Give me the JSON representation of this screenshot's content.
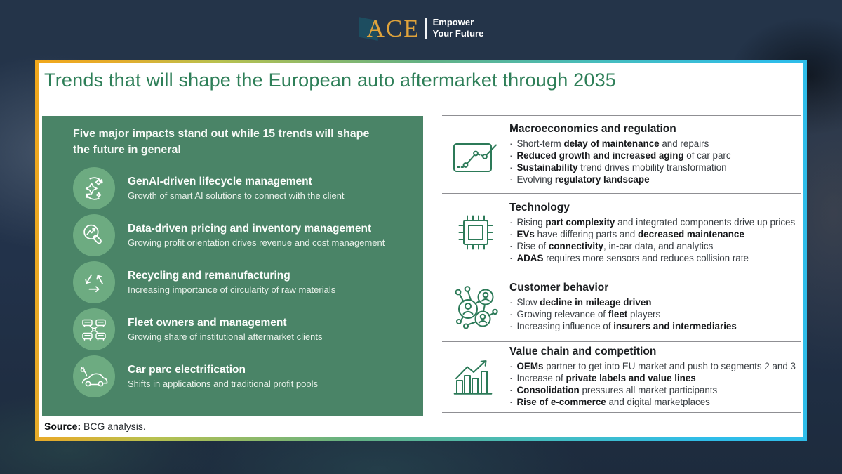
{
  "logo": {
    "mark": "ace-ribbon-mark",
    "name": "ACE",
    "tagline_line1": "Empower",
    "tagline_line2": "Your Future"
  },
  "slide": {
    "title": "Trends that will shape the European auto aftermarket through 2035",
    "source_label": "Source:",
    "source_text": " BCG analysis."
  },
  "left_panel": {
    "heading": "Five major impacts stand out while 15 trends will shape the future in general",
    "items": [
      {
        "icon": "genai-cycle-sparkles-icon",
        "title": "GenAI-driven lifecycle management",
        "subtitle": "Growth of smart AI solutions to connect with the client"
      },
      {
        "icon": "magnifier-chart-icon",
        "title": "Data-driven pricing and inventory management",
        "subtitle": "Growing profit orientation drives revenue and cost management"
      },
      {
        "icon": "recycle-icon",
        "title": "Recycling and remanufacturing",
        "subtitle": "Increasing importance of circularity of raw materials"
      },
      {
        "icon": "fleet-cars-network-icon",
        "title": "Fleet owners and management",
        "subtitle": "Growing share of institutional aftermarket clients"
      },
      {
        "icon": "electric-car-icon",
        "title": "Car parc electrification",
        "subtitle": "Shifts in applications and traditional profit pools"
      }
    ]
  },
  "right_panel": {
    "bullet_char": "·",
    "sections": [
      {
        "icon": "trend-chart-icon",
        "heading": "Macroeconomics and regulation",
        "bullets": [
          [
            {
              "t": "Short-term "
            },
            {
              "t": "delay of maintenance",
              "b": true
            },
            {
              "t": " and repairs"
            }
          ],
          [
            {
              "t": "Reduced growth and increased aging",
              "b": true
            },
            {
              "t": " of car parc"
            }
          ],
          [
            {
              "t": "Sustainability",
              "b": true
            },
            {
              "t": " trend drives mobility transformation"
            }
          ],
          [
            {
              "t": "Evolving "
            },
            {
              "t": "regulatory landscape",
              "b": true
            }
          ]
        ]
      },
      {
        "icon": "chip-icon",
        "heading": "Technology",
        "bullets": [
          [
            {
              "t": "Rising "
            },
            {
              "t": "part complexity",
              "b": true
            },
            {
              "t": " and integrated components drive up prices"
            }
          ],
          [
            {
              "t": "EVs",
              "b": true
            },
            {
              "t": " have differing parts and "
            },
            {
              "t": "decreased maintenance",
              "b": true
            }
          ],
          [
            {
              "t": "Rise of "
            },
            {
              "t": "connectivity",
              "b": true
            },
            {
              "t": ", in-car data, and analytics"
            }
          ],
          [
            {
              "t": "ADAS",
              "b": true
            },
            {
              "t": " requires more sensors and reduces collision rate"
            }
          ]
        ]
      },
      {
        "icon": "people-network-icon",
        "heading": "Customer behavior",
        "bullets": [
          [
            {
              "t": "Slow "
            },
            {
              "t": "decline in mileage driven",
              "b": true
            }
          ],
          [
            {
              "t": "Growing relevance of "
            },
            {
              "t": "fleet",
              "b": true
            },
            {
              "t": " players"
            }
          ],
          [
            {
              "t": "Increasing influence of "
            },
            {
              "t": "insurers and intermediaries",
              "b": true
            }
          ]
        ]
      },
      {
        "icon": "bar-chart-growth-icon",
        "heading": "Value chain and competition",
        "bullets": [
          [
            {
              "t": "OEMs",
              "b": true
            },
            {
              "t": " partner to get into EU market and push to segments 2 and 3"
            }
          ],
          [
            {
              "t": "Increase of "
            },
            {
              "t": "private labels and value lines",
              "b": true
            }
          ],
          [
            {
              "t": "Consolidation",
              "b": true
            },
            {
              "t": " pressures all market participants"
            }
          ],
          [
            {
              "t": "Rise of e-commerce",
              "b": true
            },
            {
              "t": " and digital marketplaces"
            }
          ]
        ]
      }
    ]
  },
  "colors": {
    "background_navy": "#243449",
    "panel_green": "#4A8467",
    "icon_circle_green": "#6DAB81",
    "title_green": "#2E7F58",
    "right_icon_stroke": "#2C7A58",
    "divider_gray": "#8F8F93",
    "logo_gold": "#E0A33B",
    "logo_mark_teal": "#1D4F63",
    "border_gradient": [
      "#F2A71B",
      "#B8C14F",
      "#64B183",
      "#3EC3D9",
      "#2FBDE9"
    ]
  }
}
